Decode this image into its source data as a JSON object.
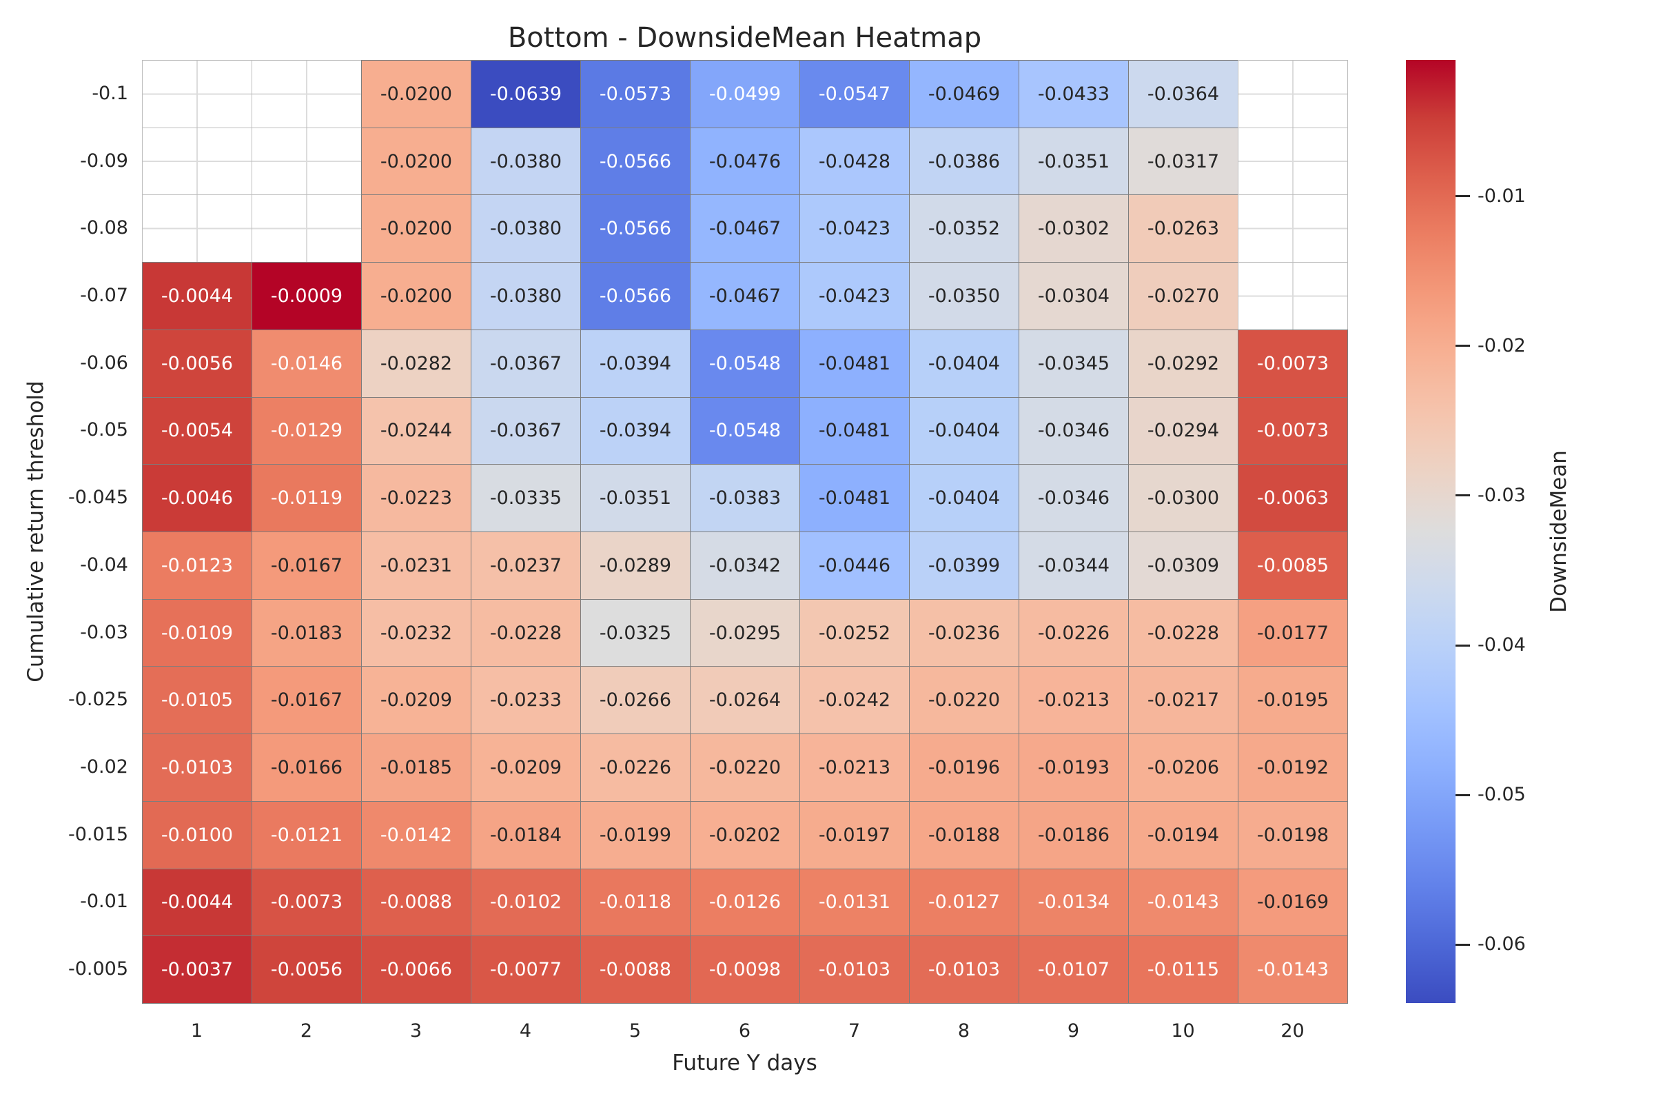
{
  "chart_data": {
    "type": "heatmap",
    "title": "Bottom - DownsideMean Heatmap",
    "xlabel": "Future Y days",
    "ylabel": "Cumulative return threshold",
    "x_categories": [
      "1",
      "2",
      "3",
      "4",
      "5",
      "6",
      "7",
      "8",
      "9",
      "10",
      "20"
    ],
    "y_categories": [
      "-0.1",
      "-0.09",
      "-0.08",
      "-0.07",
      "-0.06",
      "-0.05",
      "-0.045",
      "-0.04",
      "-0.03",
      "-0.025",
      "-0.02",
      "-0.015",
      "-0.01",
      "-0.005"
    ],
    "values": [
      [
        null,
        null,
        -0.02,
        -0.0639,
        -0.0573,
        -0.0499,
        -0.0547,
        -0.0469,
        -0.0433,
        -0.0364,
        null
      ],
      [
        null,
        null,
        -0.02,
        -0.038,
        -0.0566,
        -0.0476,
        -0.0428,
        -0.0386,
        -0.0351,
        -0.0317,
        null
      ],
      [
        null,
        null,
        -0.02,
        -0.038,
        -0.0566,
        -0.0467,
        -0.0423,
        -0.0352,
        -0.0302,
        -0.0263,
        null
      ],
      [
        -0.0044,
        -0.0009,
        -0.02,
        -0.038,
        -0.0566,
        -0.0467,
        -0.0423,
        -0.035,
        -0.0304,
        -0.027,
        null
      ],
      [
        -0.0056,
        -0.0146,
        -0.0282,
        -0.0367,
        -0.0394,
        -0.0548,
        -0.0481,
        -0.0404,
        -0.0345,
        -0.0292,
        -0.0073
      ],
      [
        -0.0054,
        -0.0129,
        -0.0244,
        -0.0367,
        -0.0394,
        -0.0548,
        -0.0481,
        -0.0404,
        -0.0346,
        -0.0294,
        -0.0073
      ],
      [
        -0.0046,
        -0.0119,
        -0.0223,
        -0.0335,
        -0.0351,
        -0.0383,
        -0.0481,
        -0.0404,
        -0.0346,
        -0.03,
        -0.0063
      ],
      [
        -0.0123,
        -0.0167,
        -0.0231,
        -0.0237,
        -0.0289,
        -0.0342,
        -0.0446,
        -0.0399,
        -0.0344,
        -0.0309,
        -0.0085
      ],
      [
        -0.0109,
        -0.0183,
        -0.0232,
        -0.0228,
        -0.0325,
        -0.0295,
        -0.0252,
        -0.0236,
        -0.0226,
        -0.0228,
        -0.0177
      ],
      [
        -0.0105,
        -0.0167,
        -0.0209,
        -0.0233,
        -0.0266,
        -0.0264,
        -0.0242,
        -0.022,
        -0.0213,
        -0.0217,
        -0.0195
      ],
      [
        -0.0103,
        -0.0166,
        -0.0185,
        -0.0209,
        -0.0226,
        -0.022,
        -0.0213,
        -0.0196,
        -0.0193,
        -0.0206,
        -0.0192
      ],
      [
        -0.01,
        -0.0121,
        -0.0142,
        -0.0184,
        -0.0199,
        -0.0202,
        -0.0197,
        -0.0188,
        -0.0186,
        -0.0194,
        -0.0198
      ],
      [
        -0.0044,
        -0.0073,
        -0.0088,
        -0.0102,
        -0.0118,
        -0.0126,
        -0.0131,
        -0.0127,
        -0.0134,
        -0.0143,
        -0.0169
      ],
      [
        -0.0037,
        -0.0056,
        -0.0066,
        -0.0077,
        -0.0088,
        -0.0098,
        -0.0103,
        -0.0103,
        -0.0107,
        -0.0115,
        -0.0143
      ]
    ],
    "vmin": -0.0639,
    "vmax": -0.0009,
    "colormap": "coolwarm",
    "annotation_decimals": 4,
    "grid": true,
    "colorbar": {
      "label": "DownsideMean",
      "ticks": [
        -0.01,
        -0.02,
        -0.03,
        -0.04,
        -0.05,
        -0.06
      ],
      "position": "right"
    }
  },
  "style": {
    "text_color": "#262626",
    "cell_border_color": "#7d7d7d",
    "empty_cell_border_color": "#bdbdbd",
    "empty_gridline_color": "#dcdcdc",
    "annotation_dark_text": "#262626",
    "annotation_light_text": "#ffffff",
    "colormap_low": "#3b4cc0",
    "colormap_mid": "#dddddd",
    "colormap_high": "#b40426"
  }
}
